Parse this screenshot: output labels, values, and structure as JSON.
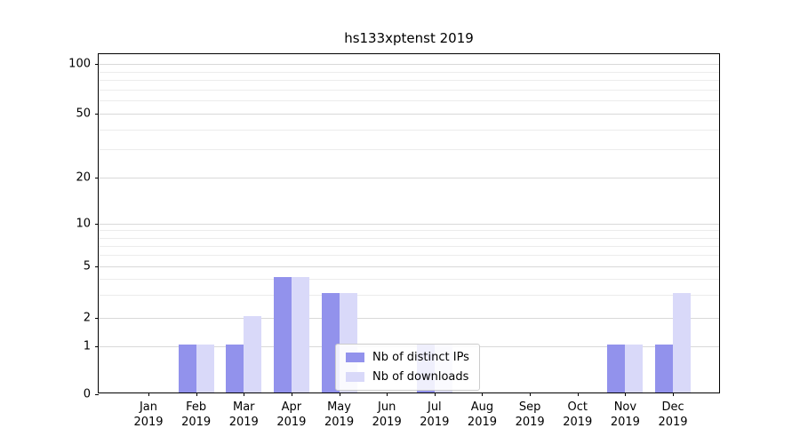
{
  "title": "hs133xptenst 2019",
  "chart_data": {
    "type": "bar",
    "title": "hs133xptenst 2019",
    "categories": [
      "Jan",
      "Feb",
      "Mar",
      "Apr",
      "May",
      "Jun",
      "Jul",
      "Aug",
      "Sep",
      "Oct",
      "Nov",
      "Dec"
    ],
    "year_label": "2019",
    "series": [
      {
        "name": "Nb of distinct IPs",
        "color": "#9292ec",
        "values": [
          0,
          1,
          1,
          4,
          3,
          0,
          1,
          0,
          0,
          0,
          1,
          1
        ]
      },
      {
        "name": "Nb of downloads",
        "color": "#d9d9f9",
        "values": [
          0,
          1,
          2,
          4,
          3,
          0,
          1,
          0,
          0,
          0,
          1,
          3
        ]
      }
    ],
    "xlabel": "",
    "ylabel": "",
    "y_scale": "log-like",
    "ylim": [
      0,
      120
    ],
    "y_ticks": [
      0,
      1,
      2,
      5,
      10,
      20,
      50,
      100
    ],
    "y_minor_ticks": [
      3,
      4,
      6,
      7,
      8,
      9,
      30,
      40,
      60,
      70,
      80,
      90
    ],
    "grid": true,
    "legend": {
      "position": "lower center",
      "entries": [
        "Nb of distinct IPs",
        "Nb of downloads"
      ]
    }
  }
}
